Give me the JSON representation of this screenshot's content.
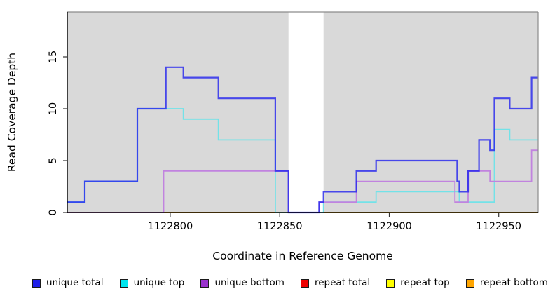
{
  "chart_data": {
    "type": "line",
    "subtype": "step-coverage",
    "title": "",
    "xlabel": "Coordinate in Reference Genome",
    "ylabel": "Read Coverage Depth",
    "xlim": [
      1122753,
      1122968
    ],
    "ylim": [
      0,
      19.3
    ],
    "x_ticks": [
      "1122800",
      "1122850",
      "1122900",
      "1122950"
    ],
    "x_tick_values": [
      1122800,
      1122850,
      1122900,
      1122950
    ],
    "y_ticks": [
      "0",
      "5",
      "10",
      "15"
    ],
    "y_tick_values": [
      0,
      5,
      10,
      15
    ],
    "grid": "off",
    "panel_bg": "#D9D9D9",
    "border_color": "#8C8C8C",
    "axis_color": "#000000",
    "gap_region": {
      "start": 1122854,
      "end": 1122870,
      "fill": "#FFFFFF"
    },
    "legend_position": "bottom",
    "series": [
      {
        "name": "repeat total",
        "legend_color": "#EE0000",
        "line_color": "#D5437A",
        "opacity": 1,
        "width": 1.6,
        "z": 1,
        "segments": [
          {
            "steps": [
              [
                1122753,
                0
              ]
            ],
            "end": 1122854
          }
        ]
      },
      {
        "name": "repeat top",
        "legend_color": "#FFFF00",
        "line_color": "#FFFF00",
        "opacity": 1,
        "width": 1.6,
        "z": 2,
        "segments": [
          {
            "steps": [
              [
                1122797,
                0
              ]
            ],
            "end": 1122854
          },
          {
            "steps": [
              [
                1122870,
                0
              ]
            ],
            "end": 1122968
          }
        ]
      },
      {
        "name": "repeat bottom",
        "legend_color": "#FFA500",
        "line_color": "#FFA513",
        "opacity": 1,
        "width": 1.8,
        "z": 3,
        "segments": [
          {
            "steps": [
              [
                1122797,
                0
              ]
            ],
            "end": 1122854
          },
          {
            "steps": [
              [
                1122870,
                0
              ]
            ],
            "end": 1122968
          }
        ]
      },
      {
        "name": "unique top",
        "legend_color": "#00E5EE",
        "line_color": "#72E2E8",
        "opacity": 1,
        "width": 1.8,
        "z": 4,
        "segments": [
          {
            "steps": [
              [
                1122753,
                1
              ],
              [
                1122761,
                3
              ],
              [
                1122785,
                10
              ],
              [
                1122806,
                9
              ],
              [
                1122822,
                7
              ],
              [
                1122848,
                0
              ],
              [
                1122870,
                1
              ],
              [
                1122894,
                2
              ],
              [
                1122932,
                1
              ],
              [
                1122948,
                8
              ],
              [
                1122955,
                7
              ]
            ],
            "end": 1122968
          }
        ]
      },
      {
        "name": "unique bottom",
        "legend_color": "#9932CC",
        "line_color": "#C183DF",
        "opacity": 1,
        "width": 1.8,
        "z": 5,
        "segments": [
          {
            "steps": [
              [
                1122753,
                0
              ],
              [
                1122797,
                4
              ],
              [
                1122854,
                0
              ],
              [
                1122868,
                1
              ],
              [
                1122885,
                3
              ],
              [
                1122930,
                1
              ],
              [
                1122936,
                4
              ],
              [
                1122946,
                3
              ],
              [
                1122965,
                6
              ]
            ],
            "end": 1122968
          }
        ]
      },
      {
        "name": "unique total",
        "legend_color": "#1F1FE8",
        "line_color": "#2222EE",
        "opacity": 0.8,
        "width": 2.2,
        "z": 6,
        "segments": [
          {
            "steps": [
              [
                1122753,
                1
              ],
              [
                1122761,
                3
              ],
              [
                1122785,
                10
              ],
              [
                1122798,
                14
              ],
              [
                1122806,
                13
              ],
              [
                1122822,
                11
              ],
              [
                1122848,
                4
              ],
              [
                1122854,
                0
              ],
              [
                1122868,
                1
              ],
              [
                1122870,
                2
              ],
              [
                1122885,
                4
              ],
              [
                1122894,
                5
              ],
              [
                1122931,
                3
              ],
              [
                1122932,
                2
              ],
              [
                1122936,
                4
              ],
              [
                1122941,
                7
              ],
              [
                1122946,
                6
              ],
              [
                1122948,
                11
              ],
              [
                1122955,
                10
              ],
              [
                1122965,
                13
              ]
            ],
            "end": 1122968
          }
        ]
      }
    ]
  }
}
